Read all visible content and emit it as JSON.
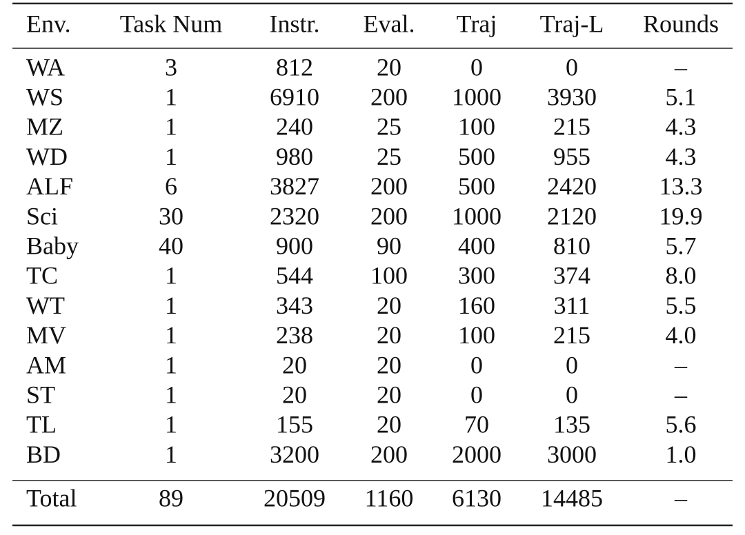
{
  "table": {
    "header": [
      "Env.",
      "Task Num",
      "Instr.",
      "Eval.",
      "Traj",
      "Traj-L",
      "Rounds"
    ],
    "rows": [
      [
        "WA",
        "3",
        "812",
        "20",
        "0",
        "0",
        "–"
      ],
      [
        "WS",
        "1",
        "6910",
        "200",
        "1000",
        "3930",
        "5.1"
      ],
      [
        "MZ",
        "1",
        "240",
        "25",
        "100",
        "215",
        "4.3"
      ],
      [
        "WD",
        "1",
        "980",
        "25",
        "500",
        "955",
        "4.3"
      ],
      [
        "ALF",
        "6",
        "3827",
        "200",
        "500",
        "2420",
        "13.3"
      ],
      [
        "Sci",
        "30",
        "2320",
        "200",
        "1000",
        "2120",
        "19.9"
      ],
      [
        "Baby",
        "40",
        "900",
        "90",
        "400",
        "810",
        "5.7"
      ],
      [
        "TC",
        "1",
        "544",
        "100",
        "300",
        "374",
        "8.0"
      ],
      [
        "WT",
        "1",
        "343",
        "20",
        "160",
        "311",
        "5.5"
      ],
      [
        "MV",
        "1",
        "238",
        "20",
        "100",
        "215",
        "4.0"
      ],
      [
        "AM",
        "1",
        "20",
        "20",
        "0",
        "0",
        "–"
      ],
      [
        "ST",
        "1",
        "20",
        "20",
        "0",
        "0",
        "–"
      ],
      [
        "TL",
        "1",
        "155",
        "20",
        "70",
        "135",
        "5.6"
      ],
      [
        "BD",
        "1",
        "3200",
        "200",
        "2000",
        "3000",
        "1.0"
      ]
    ],
    "total": [
      "Total",
      "89",
      "20509",
      "1160",
      "6130",
      "14485",
      "–"
    ]
  }
}
